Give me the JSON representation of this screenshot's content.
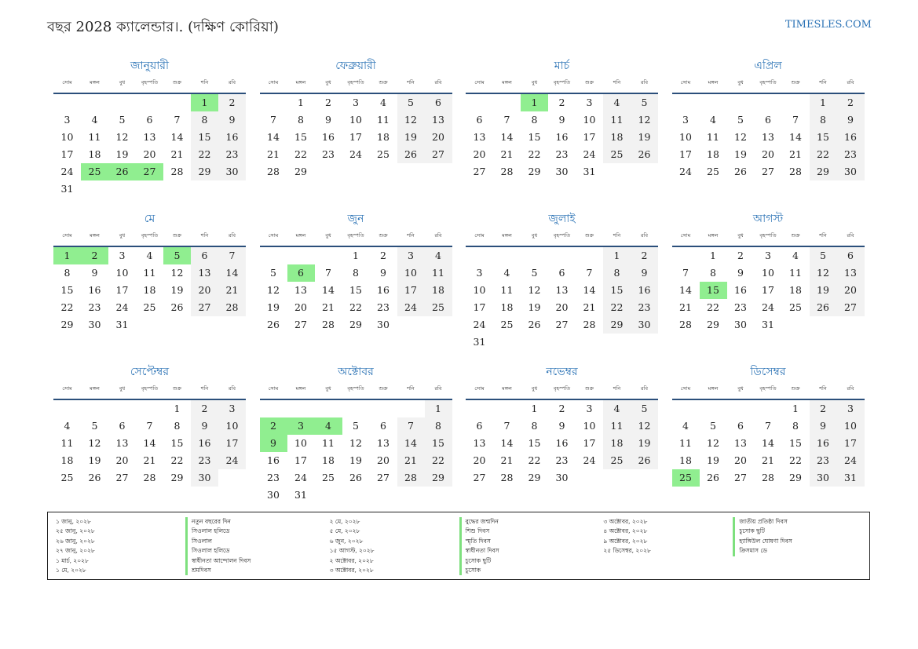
{
  "header": {
    "title": "বছর 2028 ক্যালেন্ডার।. (দক্ষিণ কোরিয়া)",
    "site": "TIMESLES.COM"
  },
  "weekdays": [
    "সোম",
    "মঙ্গল",
    "বুধ",
    "বৃহস্পতি",
    "শুক্র",
    "শনি",
    "রবি"
  ],
  "months": [
    {
      "name": "জানুয়ারী",
      "offset": 5,
      "days": 31,
      "holidays": [
        1,
        25,
        26,
        27
      ]
    },
    {
      "name": "ফেব্রুয়ারী",
      "offset": 1,
      "days": 29,
      "holidays": []
    },
    {
      "name": "মার্চ",
      "offset": 2,
      "days": 31,
      "holidays": [
        1
      ]
    },
    {
      "name": "এপ্রিল",
      "offset": 5,
      "days": 30,
      "holidays": []
    },
    {
      "name": "মে",
      "offset": 0,
      "days": 31,
      "holidays": [
        1,
        2,
        5
      ]
    },
    {
      "name": "জুন",
      "offset": 3,
      "days": 30,
      "holidays": [
        6
      ]
    },
    {
      "name": "জুলাই",
      "offset": 5,
      "days": 31,
      "holidays": []
    },
    {
      "name": "আগস্ট",
      "offset": 1,
      "days": 31,
      "holidays": [
        15
      ]
    },
    {
      "name": "সেপ্টেম্বর",
      "offset": 4,
      "days": 30,
      "holidays": []
    },
    {
      "name": "অক্টোবর",
      "offset": 6,
      "days": 31,
      "holidays": [
        2,
        3,
        4,
        9
      ]
    },
    {
      "name": "নভেম্বর",
      "offset": 2,
      "days": 30,
      "holidays": []
    },
    {
      "name": "ডিসেম্বর",
      "offset": 4,
      "days": 31,
      "holidays": [
        25
      ]
    }
  ],
  "legend": [
    [
      {
        "date": "১ জানু, ২০২৮",
        "name": "নতুন বছরের দিন"
      },
      {
        "date": "২৫ জানু, ২০২৮",
        "name": "সিওলাল হলিডে"
      },
      {
        "date": "২৬ জানু, ২০২৮",
        "name": "সিওলাল"
      },
      {
        "date": "২৭ জানু, ২০২৮",
        "name": "সিওলাল হলিডে"
      },
      {
        "date": "১ মার্চ, ২০২৮",
        "name": "স্বাধীনতা আন্দোলন দিবস"
      },
      {
        "date": "১ মে, ২০২৮",
        "name": "শ্রমদিবস"
      }
    ],
    [
      {
        "date": "২ মে, ২০২৮",
        "name": "বুদ্ধের জন্মদিন"
      },
      {
        "date": "৫ মে, ২০২৮",
        "name": "শিশু দিবস"
      },
      {
        "date": "৬ জুন, ২০২৮",
        "name": "স্মৃতি দিবস"
      },
      {
        "date": "১৫ আগস্ট, ২০২৮",
        "name": "স্বাধীনতা দিবস"
      },
      {
        "date": "২ অক্টোবর, ২০২৮",
        "name": "চুসোক ছুটি"
      },
      {
        "date": "৩ অক্টোবর, ২০২৮",
        "name": "চুসোক"
      }
    ],
    [
      {
        "date": "৩ অক্টোবর, ২০২৮",
        "name": "জাতীয় প্রতিষ্ঠা দিবস"
      },
      {
        "date": "৪ অক্টোবর, ২০২৮",
        "name": "চুসোক ছুটি"
      },
      {
        "date": "৯ অক্টোবর, ২০২৮",
        "name": "হ্যাঙ্গিউল ঘোষণা দিবস"
      },
      {
        "date": "২৫ ডিসেম্বর, ২০২৮",
        "name": "ক্রিসমাস ডে"
      }
    ]
  ]
}
